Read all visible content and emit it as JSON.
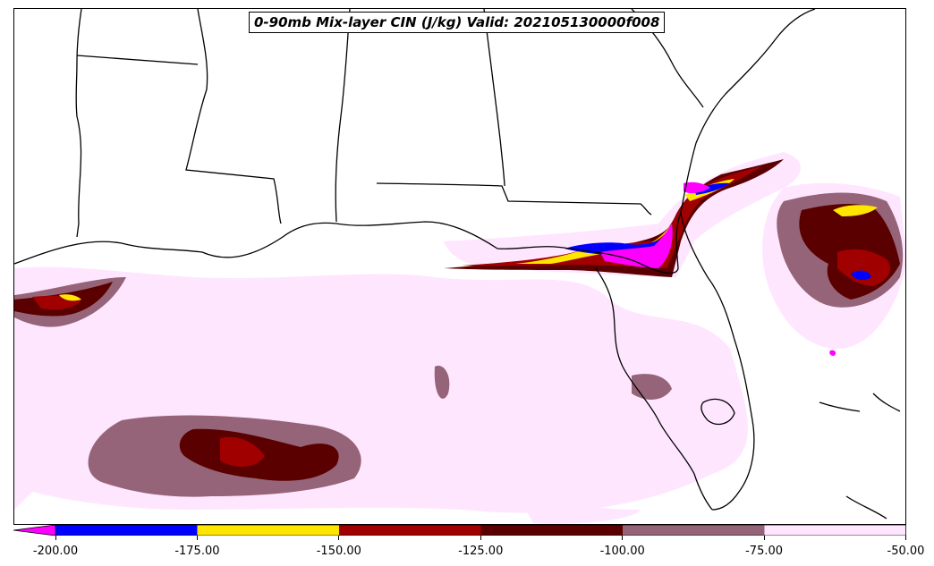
{
  "title": "0-90mb Mix-layer CIN (J/kg) Valid: 202105130000f008",
  "colorbar": {
    "levels": [
      -200,
      -175,
      -150,
      -125,
      -100,
      -75,
      -50
    ],
    "tick_labels": [
      "-200.00",
      "-175.00",
      "-150.00",
      "-125.00",
      "-100.00",
      "-75.00",
      "-50.00"
    ],
    "extend": "min",
    "extend_color": "#ff00ff",
    "band_colors": [
      "#0000ff",
      "#ffe600",
      "#a00000",
      "#5a0000",
      "#966478",
      "#ffe6ff"
    ]
  },
  "map": {
    "region": "Gulf of Mexico / Southeastern United States",
    "land_color": "#ffffff",
    "water_color": "#ffffff",
    "boundary_color": "#000000"
  }
}
